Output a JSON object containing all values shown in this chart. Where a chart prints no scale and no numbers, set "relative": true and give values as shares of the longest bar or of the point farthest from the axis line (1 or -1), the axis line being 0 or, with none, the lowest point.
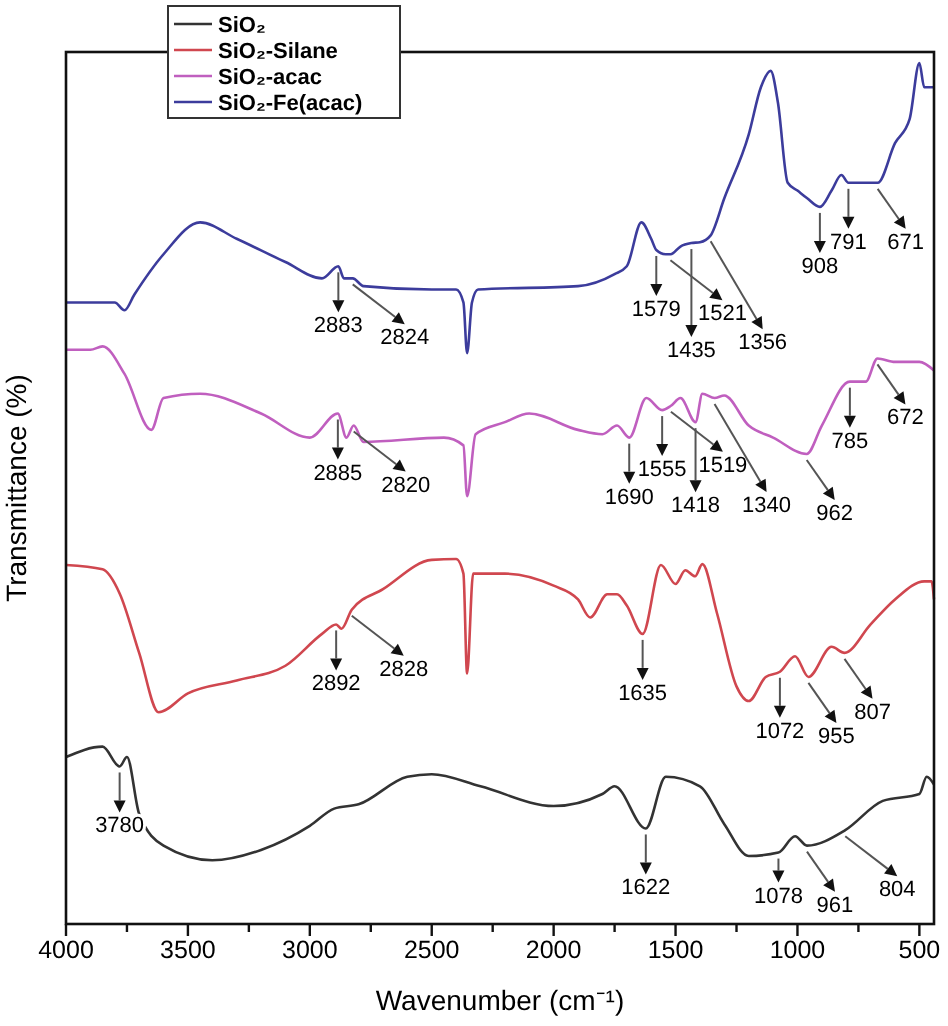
{
  "chart_data": {
    "type": "line",
    "relative": true,
    "xlabel": "Wavenumber (cm⁻¹)",
    "ylabel": "Transmittance (%)",
    "legend": "top left",
    "grid": false,
    "xlim": [
      4000,
      440
    ],
    "xticks": [
      4000,
      {
        "value": 3750,
        "label": null
      },
      3500,
      {
        "value": 3250,
        "label": null
      },
      3000,
      {
        "value": 2750,
        "label": null
      },
      2500,
      {
        "value": 2250,
        "label": null
      },
      2000,
      {
        "value": 1750,
        "label": null
      },
      1500,
      {
        "value": 1250,
        "label": null
      },
      1000,
      {
        "value": 750,
        "label": null
      },
      500
    ],
    "series": [
      {
        "name": "SiO₂",
        "color": "#333333",
        "x": [
          4000,
          3850,
          3780,
          3750,
          3700,
          3600,
          3400,
          3200,
          3000,
          2900,
          2800,
          2600,
          2500,
          2300,
          2000,
          1800,
          1750,
          1622,
          1540,
          1400,
          1300,
          1200,
          1078,
          1010,
          961,
          804,
          650,
          500,
          470,
          440
        ],
        "values": [
          0.194,
          0.206,
          0.183,
          0.194,
          0.128,
          0.091,
          0.074,
          0.086,
          0.114,
          0.134,
          0.139,
          0.171,
          0.174,
          0.16,
          0.137,
          0.151,
          0.16,
          0.111,
          0.171,
          0.16,
          0.116,
          0.079,
          0.083,
          0.102,
          0.091,
          0.109,
          0.143,
          0.151,
          0.171,
          0.162
        ]
      },
      {
        "name": "SiO₂-Silane",
        "color": "#d0474f",
        "x": [
          4000,
          3850,
          3780,
          3700,
          3620,
          3500,
          3300,
          3100,
          2950,
          2892,
          2870,
          2828,
          2700,
          2500,
          2400,
          2370,
          2355,
          2330,
          2200,
          2000,
          1900,
          1850,
          1780,
          1740,
          1700,
          1635,
          1560,
          1500,
          1460,
          1420,
          1390,
          1330,
          1250,
          1200,
          1130,
          1072,
          1010,
          955,
          860,
          807,
          700,
          600,
          480,
          450,
          440
        ],
        "values": [
          0.417,
          0.412,
          0.384,
          0.315,
          0.246,
          0.268,
          0.283,
          0.3,
          0.337,
          0.348,
          0.343,
          0.365,
          0.389,
          0.423,
          0.424,
          0.407,
          0.291,
          0.407,
          0.407,
          0.393,
          0.377,
          0.356,
          0.383,
          0.383,
          0.37,
          0.337,
          0.417,
          0.395,
          0.411,
          0.404,
          0.418,
          0.361,
          0.276,
          0.259,
          0.287,
          0.293,
          0.311,
          0.287,
          0.322,
          0.315,
          0.348,
          0.377,
          0.398,
          0.398,
          0.377
        ]
      },
      {
        "name": "SiO₂-acac",
        "color": "#c05fbf",
        "x": [
          4000,
          3900,
          3850,
          3760,
          3650,
          3600,
          3450,
          3200,
          3000,
          2885,
          2850,
          2820,
          2780,
          2450,
          2370,
          2355,
          2320,
          2200,
          2100,
          1900,
          1800,
          1740,
          1690,
          1620,
          1555,
          1519,
          1480,
          1418,
          1390,
          1340,
          1300,
          1200,
          1100,
          962,
          900,
          785,
          720,
          672,
          600,
          500,
          440
        ],
        "values": [
          0.667,
          0.667,
          0.671,
          0.639,
          0.574,
          0.611,
          0.616,
          0.593,
          0.565,
          0.593,
          0.565,
          0.579,
          0.56,
          0.565,
          0.556,
          0.497,
          0.569,
          0.583,
          0.593,
          0.574,
          0.569,
          0.579,
          0.565,
          0.611,
          0.597,
          0.602,
          0.611,
          0.583,
          0.616,
          0.611,
          0.614,
          0.579,
          0.565,
          0.546,
          0.579,
          0.63,
          0.63,
          0.657,
          0.653,
          0.653,
          0.643
        ]
      },
      {
        "name": "SiO₂-Fe(acac)",
        "color": "#3c3c9c",
        "x": [
          4000,
          3800,
          3760,
          3720,
          3600,
          3450,
          3300,
          3100,
          2950,
          2883,
          2860,
          2824,
          2780,
          2500,
          2400,
          2370,
          2355,
          2335,
          2310,
          1900,
          1750,
          1700,
          1640,
          1600,
          1579,
          1540,
          1521,
          1480,
          1435,
          1400,
          1356,
          1300,
          1200,
          1150,
          1110,
          1080,
          1040,
          1000,
          960,
          908,
          860,
          820,
          791,
          720,
          671,
          600,
          540,
          500,
          480,
          440
        ],
        "values": [
          0.722,
          0.722,
          0.713,
          0.731,
          0.778,
          0.815,
          0.796,
          0.769,
          0.75,
          0.764,
          0.75,
          0.75,
          0.741,
          0.737,
          0.737,
          0.722,
          0.663,
          0.722,
          0.737,
          0.741,
          0.755,
          0.764,
          0.815,
          0.796,
          0.783,
          0.778,
          0.778,
          0.787,
          0.791,
          0.792,
          0.8,
          0.843,
          0.917,
          0.972,
          0.991,
          0.954,
          0.861,
          0.852,
          0.843,
          0.833,
          0.852,
          0.87,
          0.861,
          0.861,
          0.861,
          0.907,
          0.935,
          1.0,
          0.972,
          0.972
        ]
      }
    ],
    "annotations": [
      {
        "text": "2883",
        "x": 2883,
        "y": 0.764
      },
      {
        "text": "2824",
        "x": 2824,
        "y": 0.75
      },
      {
        "text": "1579",
        "x": 1579,
        "y": 0.783
      },
      {
        "text": "1521",
        "x": 1521,
        "y": 0.778
      },
      {
        "text": "1435",
        "x": 1435,
        "y": 0.791
      },
      {
        "text": "1356",
        "x": 1356,
        "y": 0.8
      },
      {
        "text": "908",
        "x": 908,
        "y": 0.833
      },
      {
        "text": "791",
        "x": 791,
        "y": 0.861
      },
      {
        "text": "671",
        "x": 671,
        "y": 0.861
      },
      {
        "text": "2885",
        "x": 2885,
        "y": 0.593
      },
      {
        "text": "2820",
        "x": 2820,
        "y": 0.579
      },
      {
        "text": "1690",
        "x": 1690,
        "y": 0.565
      },
      {
        "text": "1555",
        "x": 1555,
        "y": 0.597
      },
      {
        "text": "1519",
        "x": 1519,
        "y": 0.602
      },
      {
        "text": "1418",
        "x": 1418,
        "y": 0.583
      },
      {
        "text": "1340",
        "x": 1340,
        "y": 0.611
      },
      {
        "text": "962",
        "x": 962,
        "y": 0.546
      },
      {
        "text": "785",
        "x": 785,
        "y": 0.63
      },
      {
        "text": "672",
        "x": 672,
        "y": 0.657
      },
      {
        "text": "2892",
        "x": 2892,
        "y": 0.348
      },
      {
        "text": "2828",
        "x": 2828,
        "y": 0.365
      },
      {
        "text": "1635",
        "x": 1635,
        "y": 0.337
      },
      {
        "text": "1072",
        "x": 1072,
        "y": 0.293
      },
      {
        "text": "955",
        "x": 955,
        "y": 0.287
      },
      {
        "text": "807",
        "x": 807,
        "y": 0.315
      },
      {
        "text": "3780",
        "x": 3780,
        "y": 0.183
      },
      {
        "text": "1622",
        "x": 1622,
        "y": 0.111
      },
      {
        "text": "1078",
        "x": 1078,
        "y": 0.083
      },
      {
        "text": "961",
        "x": 961,
        "y": 0.091
      },
      {
        "text": "804",
        "x": 804,
        "y": 0.109
      }
    ]
  }
}
